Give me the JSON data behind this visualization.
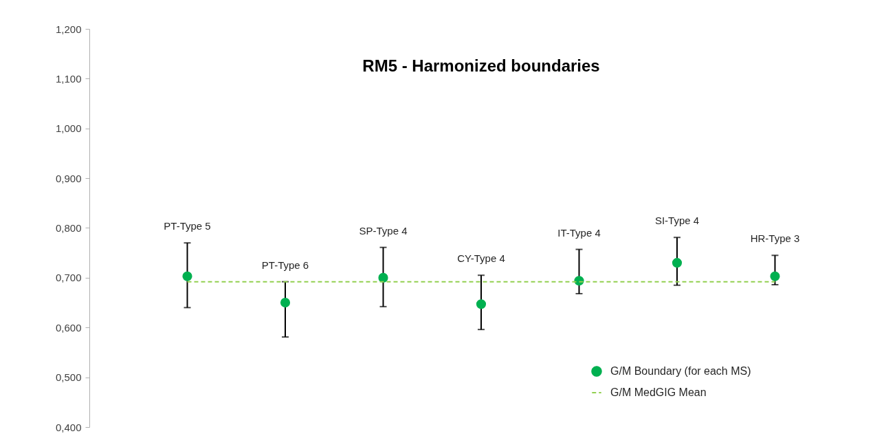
{
  "chart_data": {
    "type": "scatter",
    "title": "RM5 - Harmonized boundaries",
    "categories": [
      "PT-Type 5",
      "PT-Type 6",
      "SP-Type 4",
      "CY-Type 4",
      "IT-Type 4",
      "SI-Type 4",
      "HR-Type 3"
    ],
    "series": [
      {
        "name": "G/M Boundary (for each MS)",
        "color": "#00b050",
        "marker": "circle",
        "values": [
          0.703,
          0.65,
          0.7,
          0.647,
          0.694,
          0.73,
          0.703
        ],
        "errors": [
          [
            0.64,
            0.77
          ],
          [
            0.581,
            0.692
          ],
          [
            0.642,
            0.761
          ],
          [
            0.596,
            0.705
          ],
          [
            0.668,
            0.757
          ],
          [
            0.685,
            0.781
          ],
          [
            0.686,
            0.745
          ]
        ]
      },
      {
        "name": "G/M MedGIG Mean",
        "type": "line",
        "color": "#92d050",
        "line_style": "dashed",
        "marker": "none",
        "values": [
          0.692,
          0.692,
          0.692,
          0.692,
          0.692,
          0.692,
          0.692
        ]
      }
    ],
    "ylim": [
      0.4,
      1.2
    ],
    "yticks": [
      {
        "value": 0.4,
        "label": "0,400"
      },
      {
        "value": 0.5,
        "label": "0,500"
      },
      {
        "value": 0.6,
        "label": "0,600"
      },
      {
        "value": 0.7,
        "label": "0,700"
      },
      {
        "value": 0.8,
        "label": "0,800"
      },
      {
        "value": 0.9,
        "label": "0,900"
      },
      {
        "value": 1.0,
        "label": "1,000"
      },
      {
        "value": 1.1,
        "label": "1,100"
      },
      {
        "value": 1.2,
        "label": "1,200"
      }
    ],
    "tick_labels": "y",
    "grid": false,
    "legend": "bottom right"
  }
}
